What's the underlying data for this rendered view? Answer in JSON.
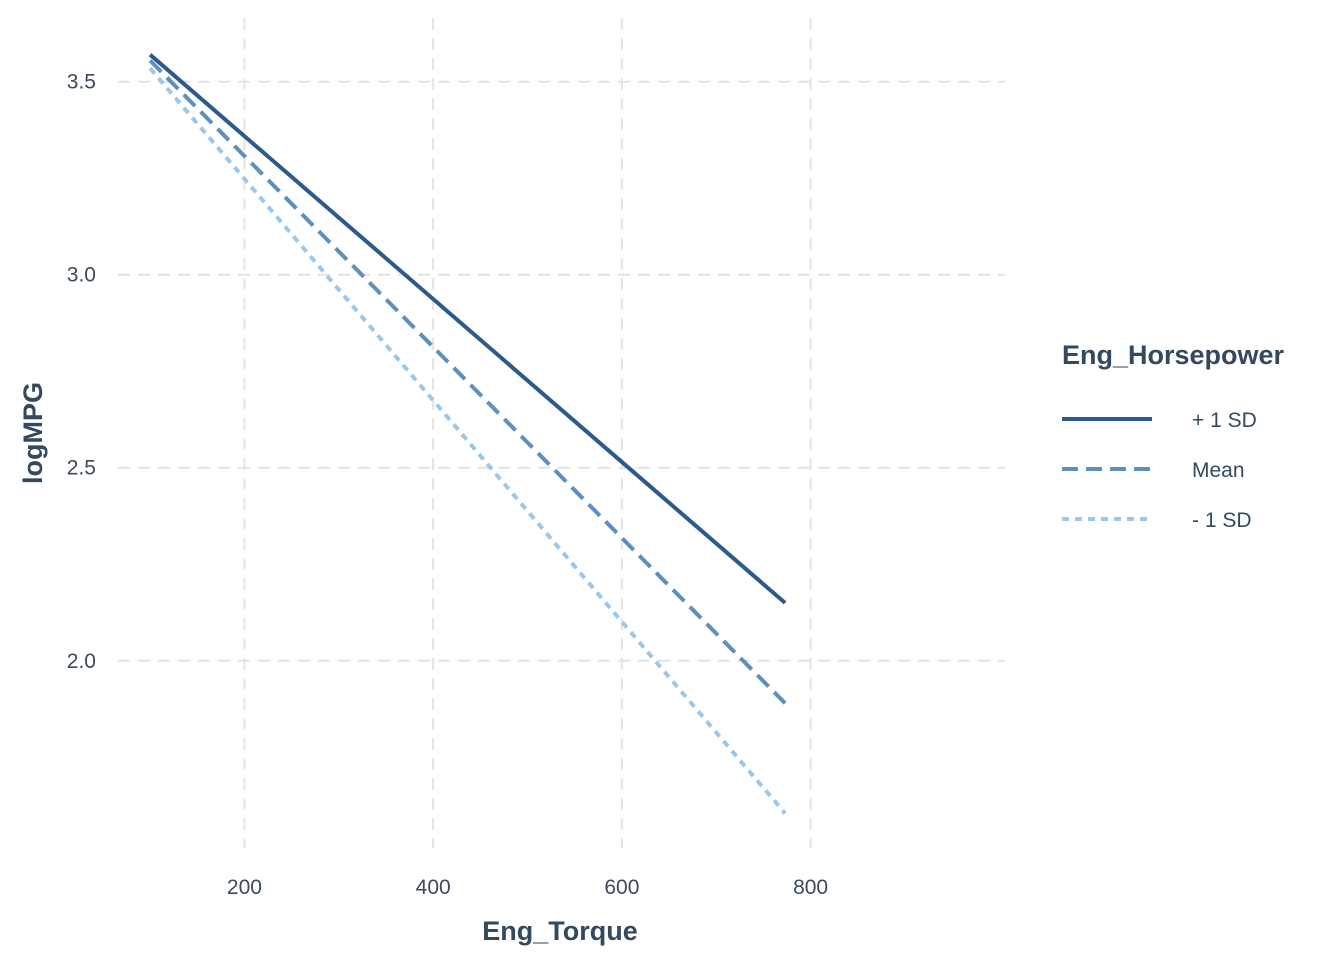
{
  "chart_data": {
    "type": "line",
    "xlabel": "Eng_Torque",
    "ylabel": "logMPG",
    "xlim": [
      66,
      1006
    ],
    "ylim": [
      1.515,
      3.665
    ],
    "x_ticks": [
      200,
      400,
      600,
      800
    ],
    "x_tick_labels": [
      "200",
      "400",
      "600",
      "800"
    ],
    "y_ticks": [
      2.0,
      2.5,
      3.0,
      3.5
    ],
    "y_tick_labels": [
      "2.0",
      "2.5",
      "3.0",
      "3.5"
    ],
    "grid": true,
    "legend": {
      "title": "Eng_Horsepower",
      "placement": "right"
    },
    "series": [
      {
        "name": "+ 1 SD",
        "x": [
          100,
          773
        ],
        "y": [
          3.57,
          2.15
        ],
        "color": "#2c5a8a",
        "dash": "solid"
      },
      {
        "name": "Mean",
        "x": [
          100,
          773
        ],
        "y": [
          3.555,
          1.89
        ],
        "color": "#5d8fbf",
        "dash": "dashed"
      },
      {
        "name": "- 1 SD",
        "x": [
          100,
          773
        ],
        "y": [
          3.535,
          1.605
        ],
        "color": "#9ac8ec",
        "dash": "dotted"
      }
    ]
  }
}
